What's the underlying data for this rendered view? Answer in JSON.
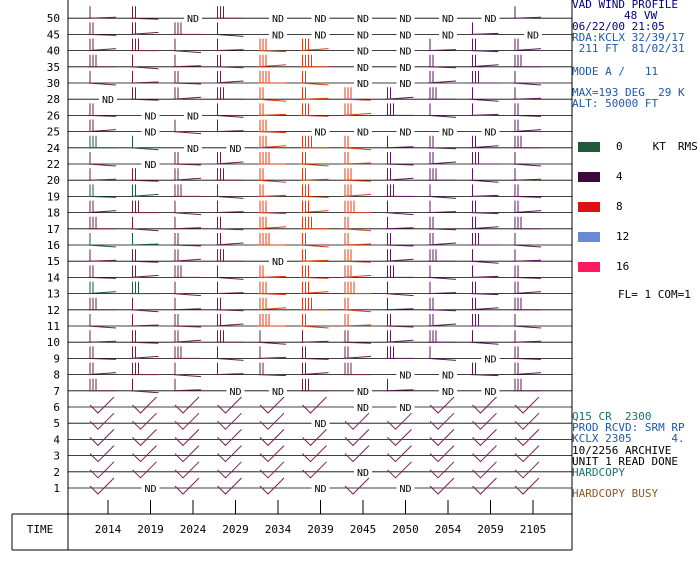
{
  "header": {
    "line1": "VAD WIND PROFILE",
    "line2": "48 VW",
    "line3": "06/22/00 21:05",
    "line4": "RDA:KCLX 32/39/17",
    "line5": " 211 FT  81/02/31",
    "mode": "MODE A /   11",
    "max": "MAX=193 DEG  29 K",
    "alt": "ALT: 50000 FT"
  },
  "legend": {
    "unit_label": "KT",
    "rms_label": "RMS",
    "items": [
      {
        "label": "0",
        "color": "#1e5a3c"
      },
      {
        "label": "4",
        "color": "#3a0a3c"
      },
      {
        "label": "8",
        "color": "#e01010"
      },
      {
        "label": "12",
        "color": "#6a8ad8"
      },
      {
        "label": "16",
        "color": "#ff1a60"
      }
    ]
  },
  "fl_com": "FL= 1 COM=1",
  "status": {
    "s1": "Q15 CR  2300",
    "s2": "PROD RCVD: SRM RP",
    "s3": "KCLX 2305      4.",
    "s4": "10/2256 ARCHIVE",
    "s5": "UNIT 1 READ DONE",
    "s6": "HARDCOPY",
    "s7": "HARDCOPY BUSY"
  },
  "chart_data": {
    "type": "wind_profile",
    "time_label": "TIME",
    "times": [
      "2014",
      "2019",
      "2024",
      "2029",
      "2034",
      "2039",
      "2045",
      "2050",
      "2054",
      "2059",
      "2105"
    ],
    "altitudes": [
      "1",
      "2",
      "3",
      "4",
      "5",
      "6",
      "7",
      "8",
      "9",
      "10",
      "11",
      "12",
      "13",
      "14",
      "15",
      "16",
      "17",
      "18",
      "19",
      "20",
      "22",
      "24",
      "25",
      "26",
      "28",
      "30",
      "35",
      "40",
      "45",
      "50"
    ],
    "nd_label": "ND",
    "no_data": [
      [
        0,
        24
      ],
      [
        1,
        0
      ],
      [
        1,
        20
      ],
      [
        1,
        22
      ],
      [
        1,
        23
      ],
      [
        2,
        21
      ],
      [
        2,
        29
      ],
      [
        2,
        23
      ],
      [
        3,
        6
      ],
      [
        3,
        21
      ],
      [
        4,
        6
      ],
      [
        4,
        29
      ],
      [
        4,
        28
      ],
      [
        4,
        14
      ],
      [
        5,
        4
      ],
      [
        5,
        29
      ],
      [
        5,
        28
      ],
      [
        5,
        0
      ],
      [
        5,
        22
      ],
      [
        6,
        29
      ],
      [
        6,
        28
      ],
      [
        6,
        27
      ],
      [
        6,
        26
      ],
      [
        6,
        25
      ],
      [
        6,
        5
      ],
      [
        6,
        6
      ],
      [
        6,
        1
      ],
      [
        6,
        22
      ],
      [
        7,
        29
      ],
      [
        7,
        28
      ],
      [
        7,
        27
      ],
      [
        7,
        26
      ],
      [
        7,
        25
      ],
      [
        7,
        5
      ],
      [
        7,
        7
      ],
      [
        7,
        0
      ],
      [
        7,
        22
      ],
      [
        8,
        29
      ],
      [
        8,
        28
      ],
      [
        8,
        22
      ],
      [
        8,
        6
      ],
      [
        8,
        7
      ],
      [
        9,
        29
      ],
      [
        9,
        6
      ],
      [
        9,
        8
      ],
      [
        9,
        22
      ],
      [
        10,
        28
      ]
    ]
  }
}
